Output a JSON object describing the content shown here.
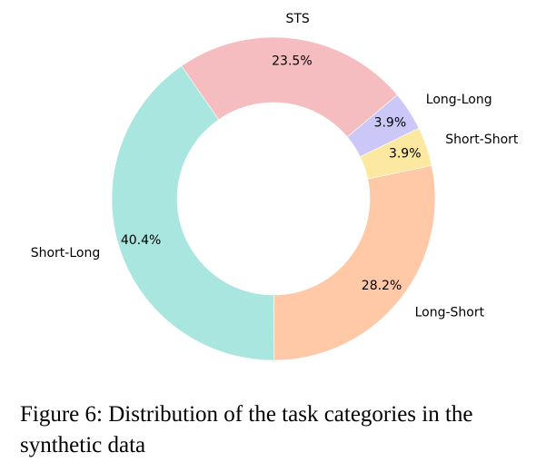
{
  "chart_data": {
    "type": "pie",
    "variant": "donut",
    "slices": [
      {
        "label": "STS",
        "value": 23.5,
        "pct_text": "23.5%",
        "color": "#f5bdbf"
      },
      {
        "label": "Short-Long",
        "value": 40.4,
        "pct_text": "40.4%",
        "color": "#a8e6df"
      },
      {
        "label": "Long-Short",
        "value": 28.2,
        "pct_text": "28.2%",
        "color": "#ffc8a7"
      },
      {
        "label": "Short-Short",
        "value": 3.9,
        "pct_text": "3.9%",
        "color": "#fce8a1"
      },
      {
        "label": "Long-Long",
        "value": 3.9,
        "pct_text": "3.9%",
        "color": "#cbc7f7"
      }
    ]
  },
  "caption": "Figure 6: Distribution of the task categories in the synthetic data"
}
